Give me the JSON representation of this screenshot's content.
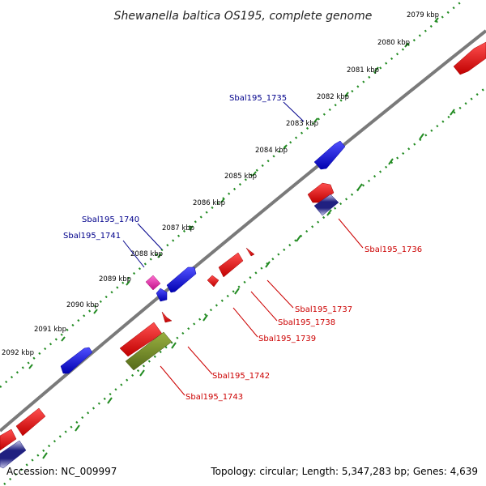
{
  "title": "Shewanella baltica OS195, complete genome",
  "accession": "Accession: NC_009997",
  "topology": "Topology: circular; Length: 5,347,283 bp; Genes: 4,639",
  "colors": {
    "backbone": "#808080",
    "tick_dots": "#228B22",
    "forward_gene": "#1010E0",
    "reverse_gene": "#E01010",
    "pseudo_gene": "#E020A0",
    "rna_gene": "#6B8E23",
    "forward_label": "#00008B",
    "reverse_label": "#CC0000"
  },
  "scale": {
    "unit": "kbp",
    "ticks": [
      {
        "value": 2079,
        "label": "2079 kbp"
      },
      {
        "value": 2080,
        "label": "2080 kbp"
      },
      {
        "value": 2081,
        "label": "2081 kbp"
      },
      {
        "value": 2082,
        "label": "2082 kbp"
      },
      {
        "value": 2083,
        "label": "2083 kbp"
      },
      {
        "value": 2084,
        "label": "2084 kbp"
      },
      {
        "value": 2085,
        "label": "2085 kbp"
      },
      {
        "value": 2086,
        "label": "2086 kbp"
      },
      {
        "value": 2087,
        "label": "2087 kbp"
      },
      {
        "value": 2088,
        "label": "2088 kbp"
      },
      {
        "value": 2089,
        "label": "2089 kbp"
      },
      {
        "value": 2090,
        "label": "2090 kbp"
      },
      {
        "value": 2091,
        "label": "2091 kbp"
      },
      {
        "value": 2092,
        "label": "2092 kbp"
      }
    ]
  },
  "genes": [
    {
      "name": "Sbal195_1735",
      "strand": "forward",
      "label_side": "outer",
      "type": "cds"
    },
    {
      "name": "Sbal195_1736",
      "strand": "reverse",
      "label_side": "inner",
      "type": "cds"
    },
    {
      "name": "Sbal195_1737",
      "strand": "reverse",
      "label_side": "inner",
      "type": "cds"
    },
    {
      "name": "Sbal195_1738",
      "strand": "reverse",
      "label_side": "inner",
      "type": "cds"
    },
    {
      "name": "Sbal195_1739",
      "strand": "reverse",
      "label_side": "inner",
      "type": "cds"
    },
    {
      "name": "Sbal195_1740",
      "strand": "forward",
      "label_side": "outer",
      "type": "cds"
    },
    {
      "name": "Sbal195_1741",
      "strand": "forward",
      "label_side": "outer",
      "type": "pseudo"
    },
    {
      "name": "Sbal195_1742",
      "strand": "reverse",
      "label_side": "inner",
      "type": "cds"
    },
    {
      "name": "Sbal195_1743",
      "strand": "reverse",
      "label_side": "inner",
      "type": "rna"
    }
  ]
}
